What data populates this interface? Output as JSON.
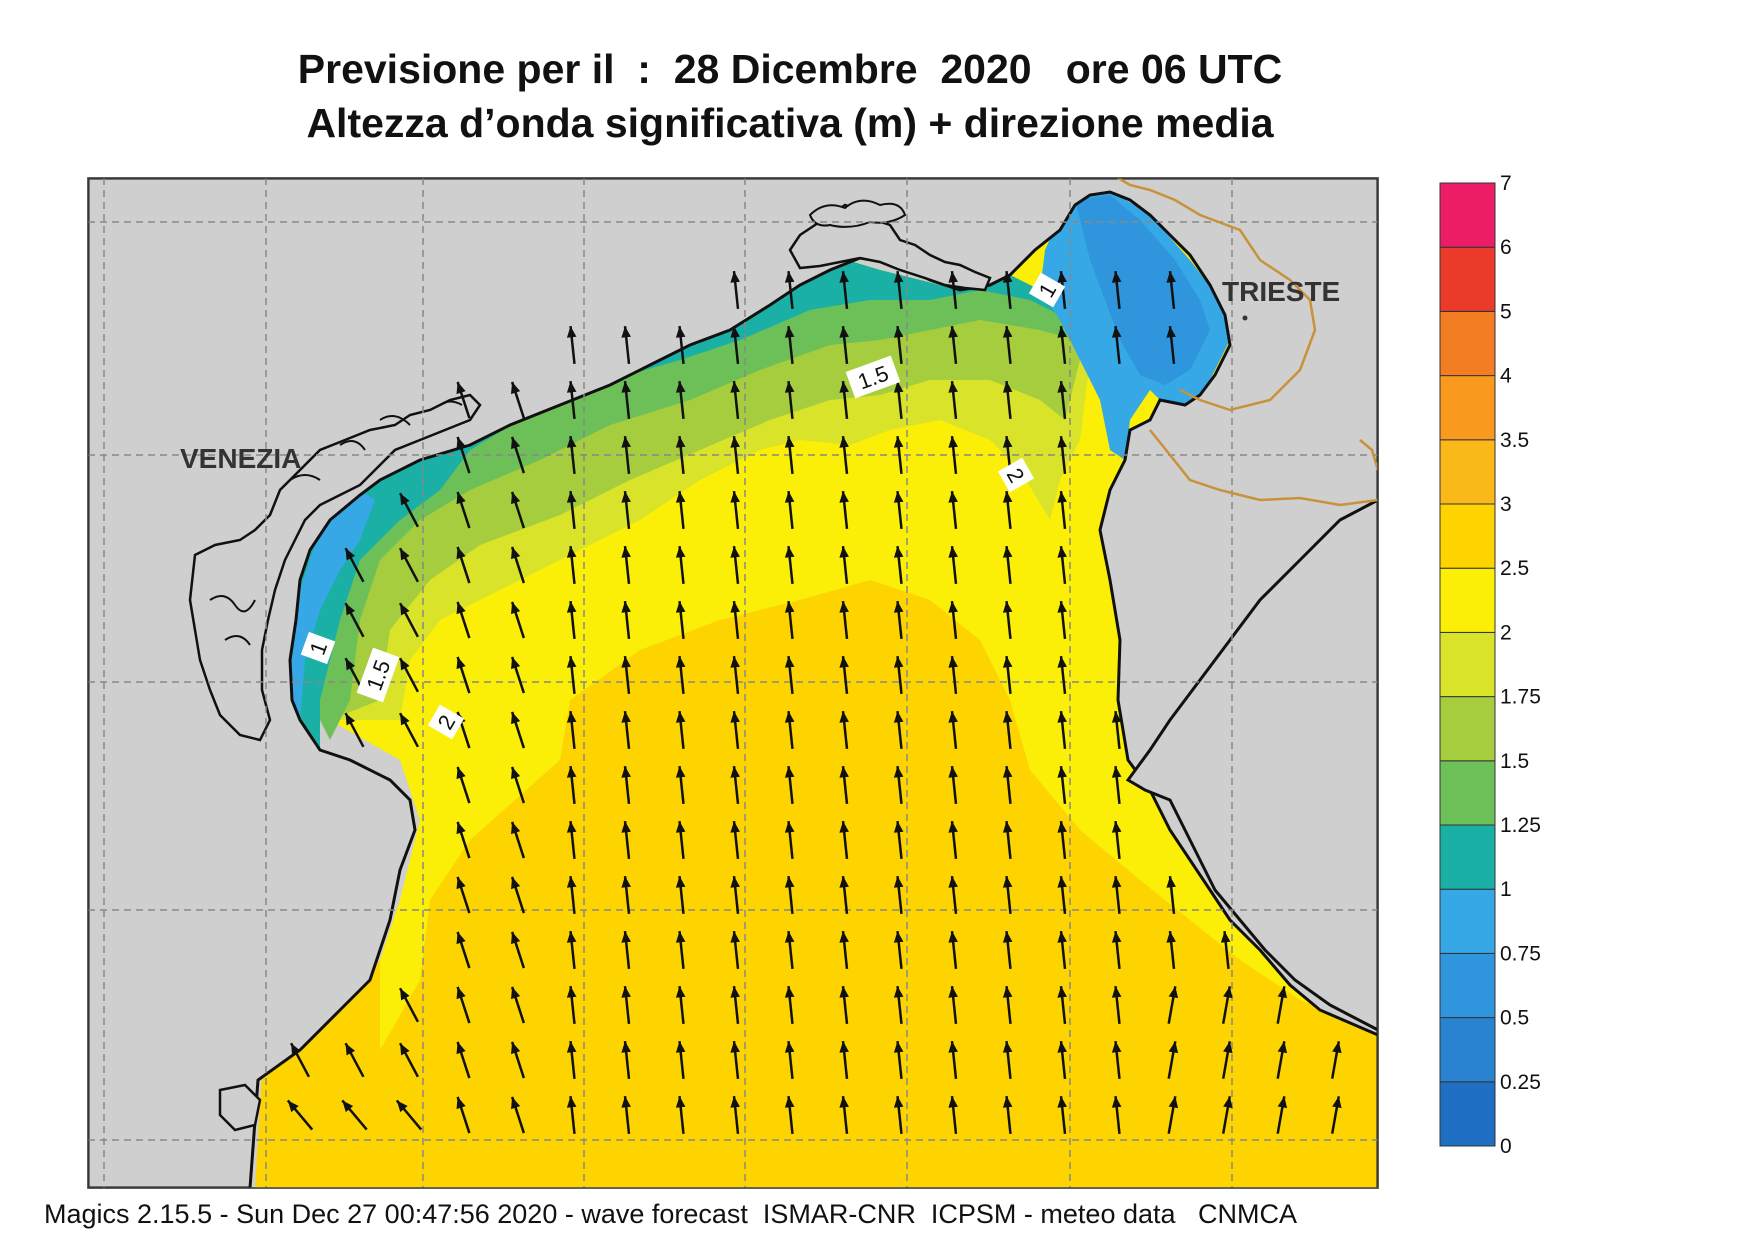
{
  "title_line1": "Previsione per il  :  28 Dicembre  2020   ore 06 UTC",
  "title_line2": "Altezza d’onda significativa (m) + direzione media",
  "footer": "Magics 2.15.5 - Sun Dec 27 00:47:56 2020 - wave forecast  ISMAR-CNR  ICPSM - meteo data   CNMCA",
  "places": {
    "venezia": "VENEZIA",
    "trieste": "TRIESTE"
  },
  "contour_labels": {
    "c1_north": "1",
    "c15_north": "1.5",
    "c2_north": "2",
    "c1_west": "1",
    "c15_west": "1.5",
    "c2_west": "2"
  },
  "colorbar": {
    "labels": [
      "0",
      "0.25",
      "0.5",
      "0.75",
      "1",
      "1.25",
      "1.5",
      "1.75",
      "2",
      "2.5",
      "3",
      "3.5",
      "4",
      "5",
      "6",
      "7"
    ],
    "colors": [
      "#1f6fc4",
      "#2a83d1",
      "#2f95dc",
      "#37a8e6",
      "#1ab0a6",
      "#6dbf57",
      "#a6cd3d",
      "#d9e32a",
      "#fbef07",
      "#fdd400",
      "#fbb819",
      "#f99a1f",
      "#f27d23",
      "#ec3a2a",
      "#ec1c67"
    ]
  },
  "colors": {
    "land": "#cfcfcf",
    "coast": "#111111",
    "border": "#c8923a",
    "grid": "#999999",
    "arrow": "#111111"
  },
  "wave_direction": "north / north-northwest"
}
